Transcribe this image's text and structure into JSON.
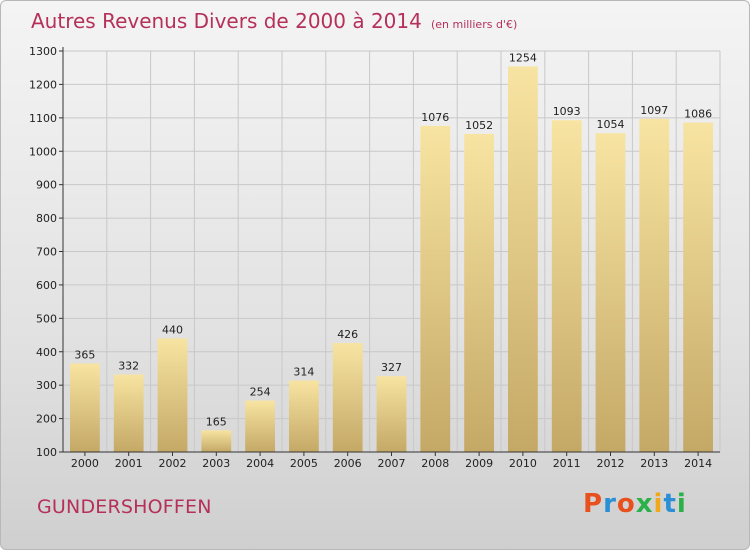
{
  "header": {
    "title": "Autres Revenus Divers de 2000 à 2014",
    "unit": "(en milliers d'€)"
  },
  "footer": {
    "commune": "GUNDERSHOFFEN",
    "logo_text": "Proxiti"
  },
  "colors": {
    "title": "#b5305a",
    "bar_light": "#f8e4a2",
    "bar_dark": "#c4a866",
    "grid": "#c8c8c8",
    "logo_letters": [
      "#e8501e",
      "#2b8fd6",
      "#e8501e",
      "#2bb14a",
      "#f0a81c",
      "#2b8fd6",
      "#2bb14a"
    ]
  },
  "chart_data": {
    "type": "bar",
    "title": "Autres Revenus Divers de 2000 à 2014",
    "categories": [
      "2000",
      "2001",
      "2002",
      "2003",
      "2004",
      "2005",
      "2006",
      "2007",
      "2008",
      "2009",
      "2010",
      "2011",
      "2012",
      "2013",
      "2014"
    ],
    "values": [
      365,
      332,
      440,
      165,
      254,
      314,
      426,
      327,
      1076,
      1052,
      1254,
      1093,
      1054,
      1097,
      1086
    ],
    "ylim": [
      100,
      1300
    ],
    "yticks": [
      100,
      200,
      300,
      400,
      500,
      600,
      700,
      800,
      900,
      1000,
      1100,
      1200,
      1300
    ],
    "grid": true,
    "xlabel": "",
    "ylabel": ""
  }
}
